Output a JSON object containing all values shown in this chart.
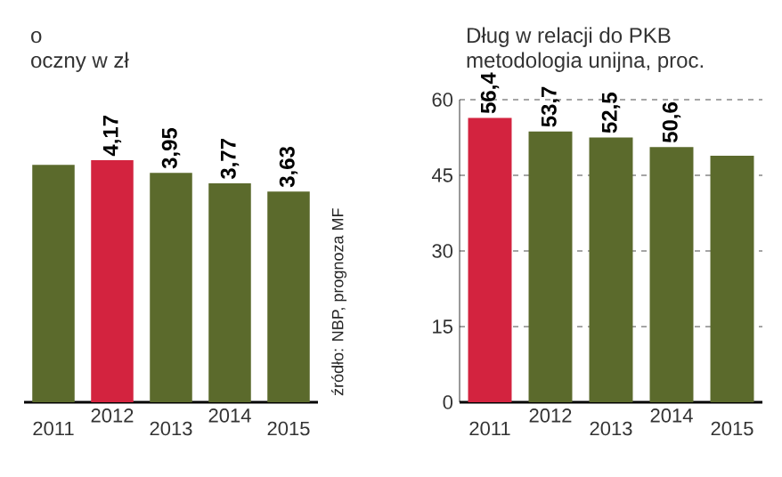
{
  "chart_data": [
    {
      "type": "bar",
      "title": "o",
      "subtitle": "oczny w zł",
      "categories": [
        "2011",
        "2012",
        "2013",
        "2014",
        "2015"
      ],
      "values": [
        4.09,
        4.17,
        3.95,
        3.77,
        3.63
      ],
      "value_labels": [
        null,
        "4,17",
        "3,95",
        "3,77",
        "3,63"
      ],
      "colors": [
        "#5b6a2c",
        "#d3233f",
        "#5b6a2c",
        "#5b6a2c",
        "#5b6a2c"
      ],
      "tick_labels": "x",
      "annotations": [
        "źródło: NBP, prognoza MF"
      ]
    },
    {
      "type": "bar",
      "title": "Dług w relacji do PKB",
      "subtitle": "metodologia unijna, proc.",
      "categories": [
        "2011",
        "2012",
        "2013",
        "2014",
        "2015"
      ],
      "values": [
        56.4,
        53.7,
        52.5,
        50.6,
        48.9
      ],
      "value_labels": [
        "56,4",
        "53,7",
        "52,5",
        "50,6",
        null
      ],
      "colors": [
        "#d3233f",
        "#5b6a2c",
        "#5b6a2c",
        "#5b6a2c",
        "#5b6a2c"
      ],
      "ylim": [
        0,
        60
      ],
      "yticks": [
        0,
        15,
        30,
        45,
        60
      ],
      "grid": "y"
    }
  ]
}
